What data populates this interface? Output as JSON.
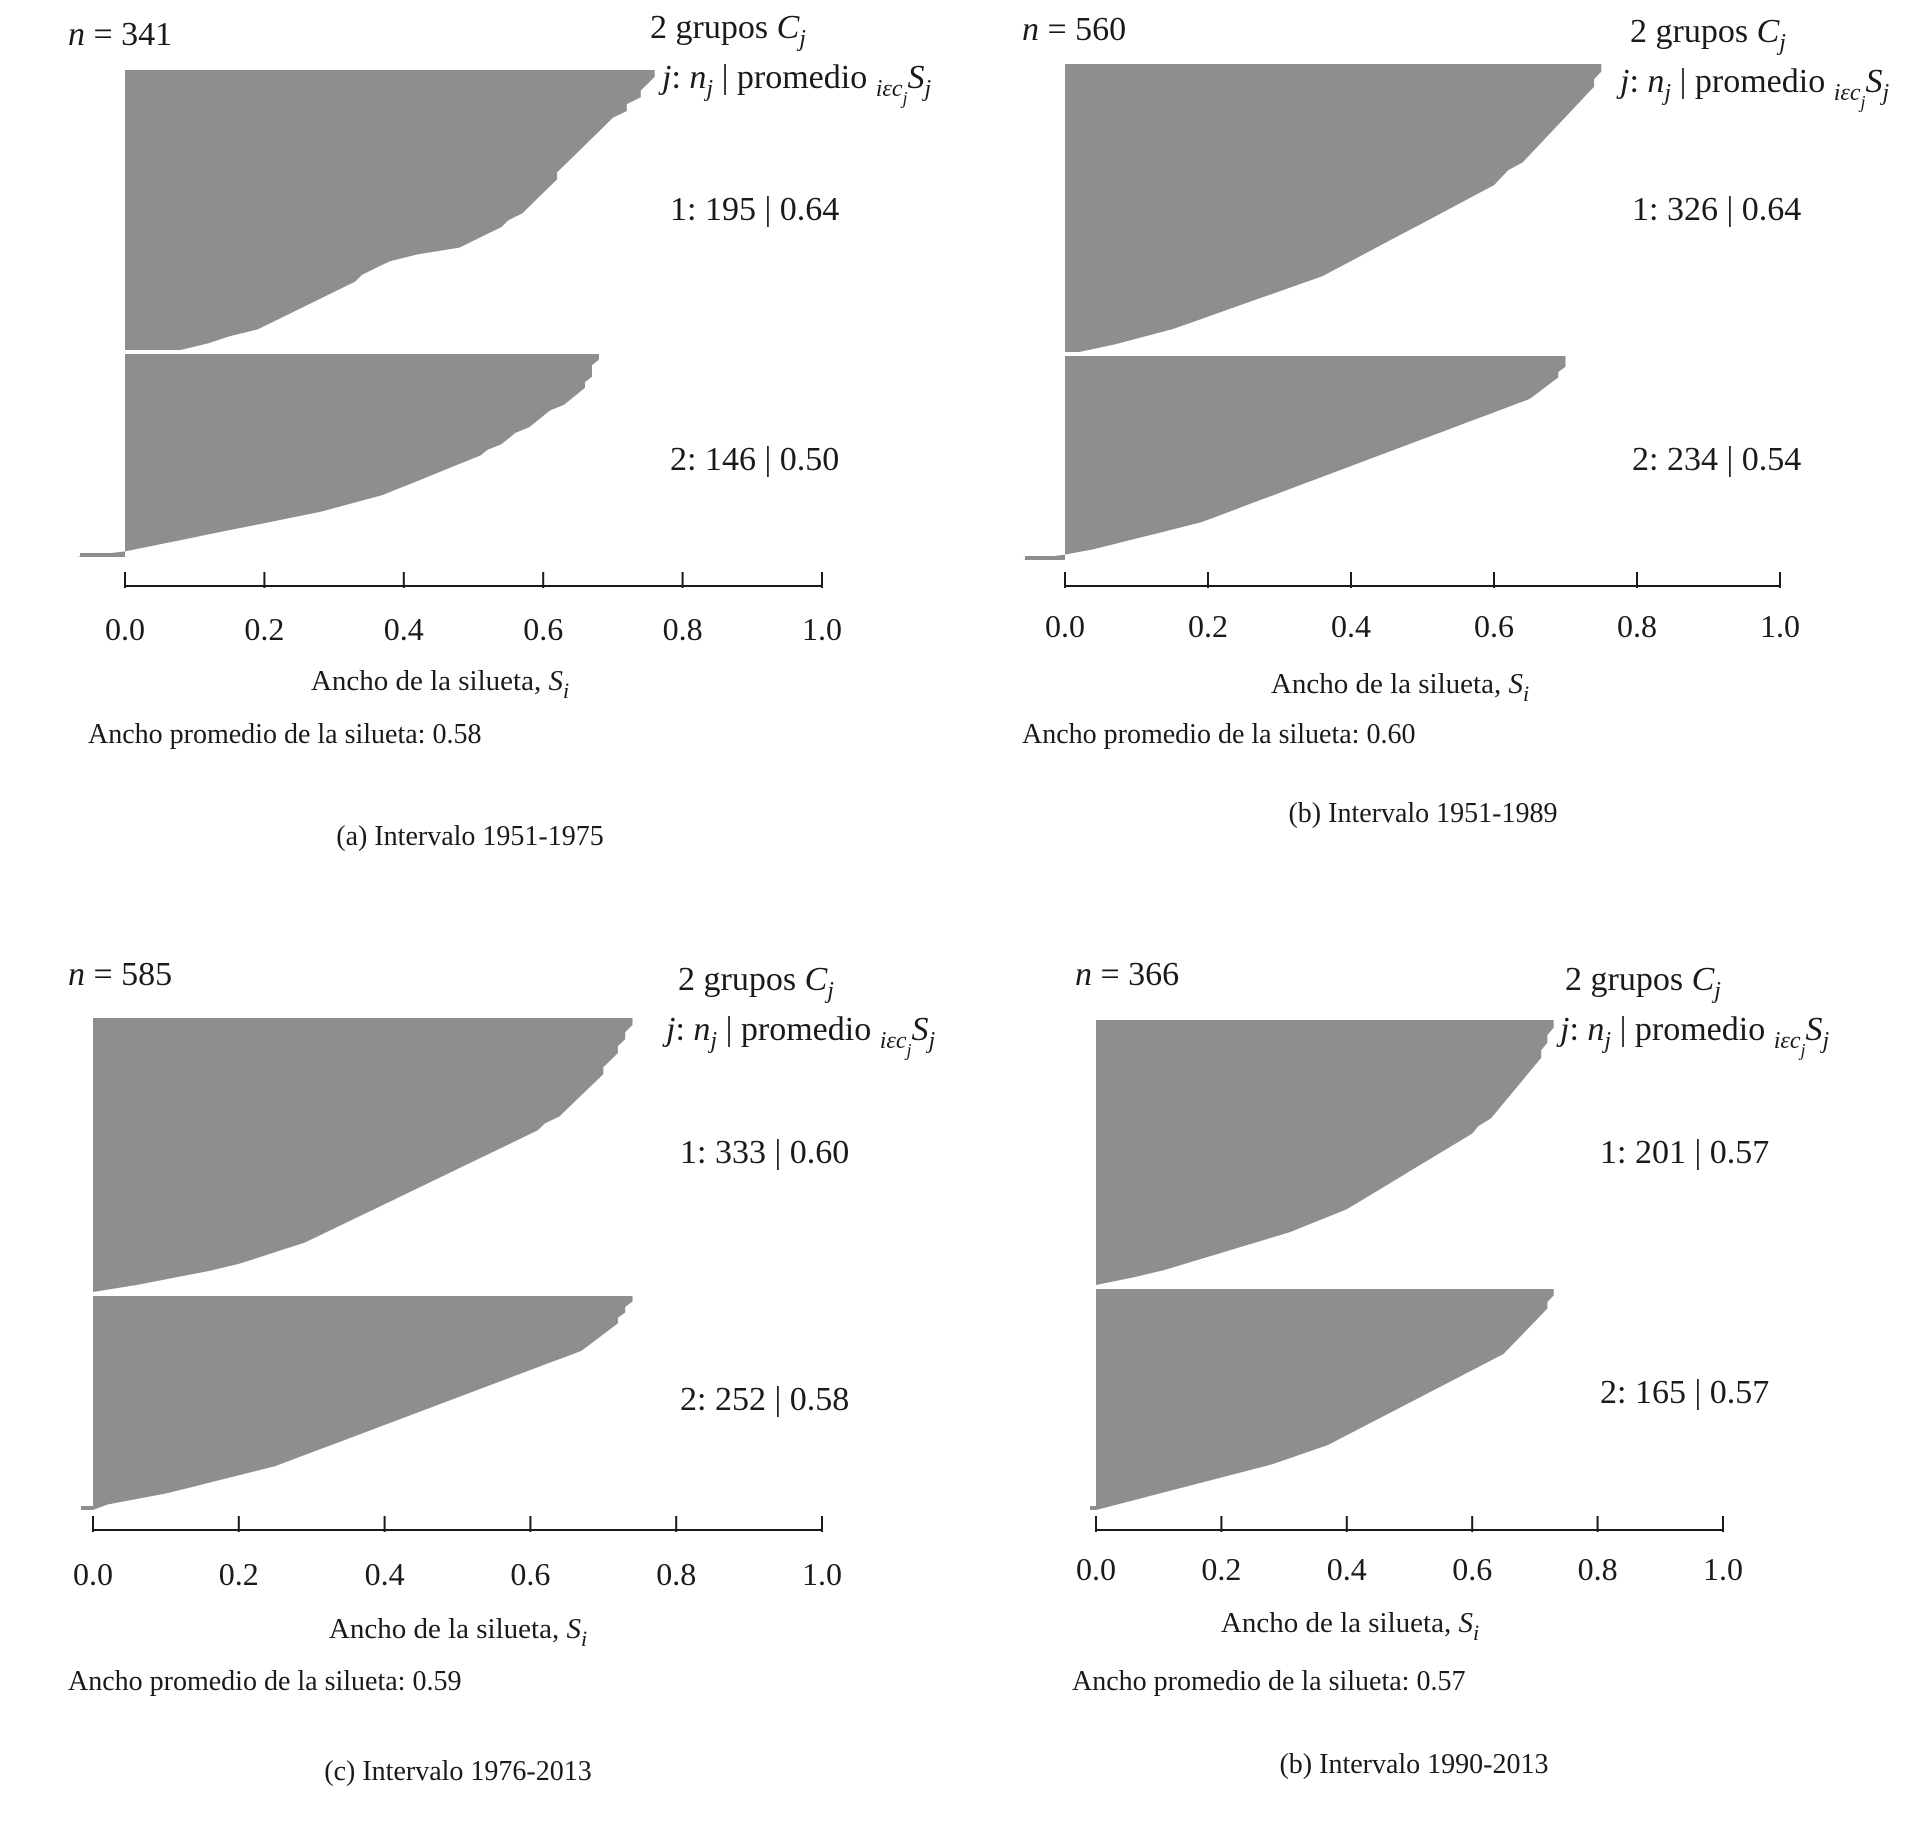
{
  "figure": {
    "bar_color": "#8e8e8e",
    "panels": [
      {
        "n_prefix": "n",
        "n_text": " = 341",
        "groups_title": "2 grupos ",
        "groups_var": "C",
        "groups_sub": "j",
        "header": {
          "j": "j",
          "colon": ": ",
          "n": "n",
          "sub": "j",
          "mid": " | promedio ",
          "iec": "iεc",
          "iec_sub": "j",
          "S": "S",
          "S_sub": "j"
        },
        "axis_title": "Ancho de la silueta, ",
        "axis_var": "S",
        "axis_sub": "i",
        "avg_text": "Ancho promedio de la silueta: 0.58",
        "caption": "(a) Intervalo 1951-1975",
        "chart_data": {
          "type": "silhouette",
          "n": 341,
          "average_width": 0.58,
          "xlim": [
            0.0,
            1.0
          ],
          "xticks": [
            "0.0",
            "0.2",
            "0.4",
            "0.6",
            "0.8",
            "1.0"
          ],
          "clusters": [
            {
              "label": "1: 195 | 0.64",
              "size": 195,
              "avg": 0.64,
              "profile": [
                0.76,
                0.76,
                0.75,
                0.74,
                0.74,
                0.72,
                0.72,
                0.7,
                0.69,
                0.68,
                0.67,
                0.66,
                0.65,
                0.64,
                0.63,
                0.62,
                0.62,
                0.61,
                0.6,
                0.59,
                0.58,
                0.57,
                0.55,
                0.54,
                0.52,
                0.5,
                0.48,
                0.42,
                0.38,
                0.36,
                0.34,
                0.33,
                0.31,
                0.29,
                0.27,
                0.25,
                0.23,
                0.21,
                0.19,
                0.15,
                0.12,
                0.08
              ]
            },
            {
              "label": "2: 146 | 0.50",
              "size": 146,
              "avg": 0.5,
              "profile": [
                0.68,
                0.68,
                0.67,
                0.67,
                0.67,
                0.66,
                0.66,
                0.65,
                0.64,
                0.63,
                0.61,
                0.6,
                0.59,
                0.58,
                0.56,
                0.55,
                0.54,
                0.52,
                0.51,
                0.49,
                0.47,
                0.45,
                0.43,
                0.41,
                0.39,
                0.37,
                0.34,
                0.31,
                0.28,
                0.24,
                0.2,
                0.16,
                0.12,
                0.08,
                0.04,
                0.0,
                -0.07
              ]
            }
          ]
        }
      },
      {
        "n_prefix": "n",
        "n_text": " = 560",
        "groups_title": "2 grupos ",
        "groups_var": "C",
        "groups_sub": "j",
        "header": {
          "j": "j",
          "colon": ": ",
          "n": "n",
          "sub": "j",
          "mid": " | promedio ",
          "iec": "iεc",
          "iec_sub": "j",
          "S": "S",
          "S_sub": "j"
        },
        "axis_title": "Ancho de la silueta, ",
        "axis_var": "S",
        "axis_sub": "i",
        "avg_text": "Ancho promedio de la silueta: 0.60",
        "caption": "(b) Intervalo 1951-1989",
        "chart_data": {
          "type": "silhouette",
          "n": 560,
          "average_width": 0.6,
          "xlim": [
            0.0,
            1.0
          ],
          "xticks": [
            "0.0",
            "0.2",
            "0.4",
            "0.6",
            "0.8",
            "1.0"
          ],
          "clusters": [
            {
              "label": "1: 326 | 0.64",
              "size": 326,
              "avg": 0.64,
              "profile": [
                0.75,
                0.75,
                0.74,
                0.74,
                0.73,
                0.72,
                0.71,
                0.7,
                0.69,
                0.68,
                0.67,
                0.66,
                0.65,
                0.64,
                0.62,
                0.61,
                0.6,
                0.58,
                0.56,
                0.54,
                0.52,
                0.5,
                0.48,
                0.46,
                0.44,
                0.42,
                0.4,
                0.38,
                0.36,
                0.33,
                0.3,
                0.27,
                0.24,
                0.21,
                0.18,
                0.15,
                0.11,
                0.07,
                0.02
              ]
            },
            {
              "label": "2: 234 | 0.54",
              "size": 234,
              "avg": 0.54,
              "profile": [
                0.7,
                0.7,
                0.7,
                0.69,
                0.69,
                0.68,
                0.67,
                0.66,
                0.65,
                0.63,
                0.61,
                0.59,
                0.57,
                0.55,
                0.53,
                0.51,
                0.49,
                0.47,
                0.45,
                0.43,
                0.41,
                0.39,
                0.37,
                0.35,
                0.33,
                0.31,
                0.29,
                0.27,
                0.25,
                0.23,
                0.21,
                0.19,
                0.16,
                0.13,
                0.1,
                0.07,
                0.04,
                0.0,
                -0.06
              ]
            }
          ]
        }
      },
      {
        "n_prefix": "n",
        "n_text": " = 585",
        "groups_title": "2 grupos ",
        "groups_var": "C",
        "groups_sub": "j",
        "header": {
          "j": "j",
          "colon": ": ",
          "n": "n",
          "sub": "j",
          "mid": " | promedio ",
          "iec": "iεc",
          "iec_sub": "j",
          "S": "S",
          "S_sub": "j"
        },
        "axis_title": "Ancho de la silueta, ",
        "axis_var": "S",
        "axis_sub": "i",
        "avg_text": "Ancho promedio de la silueta: 0.59",
        "caption": "(c) Intervalo 1976-2013",
        "chart_data": {
          "type": "silhouette",
          "n": 585,
          "average_width": 0.59,
          "xlim": [
            0.0,
            1.0
          ],
          "xticks": [
            "0.0",
            "0.2",
            "0.4",
            "0.6",
            "0.8",
            "1.0"
          ],
          "clusters": [
            {
              "label": "1: 333 | 0.60",
              "size": 333,
              "avg": 0.6,
              "profile": [
                0.74,
                0.74,
                0.73,
                0.73,
                0.72,
                0.72,
                0.71,
                0.7,
                0.7,
                0.69,
                0.68,
                0.67,
                0.66,
                0.65,
                0.64,
                0.62,
                0.61,
                0.59,
                0.57,
                0.55,
                0.53,
                0.51,
                0.49,
                0.47,
                0.45,
                0.43,
                0.41,
                0.39,
                0.37,
                0.35,
                0.33,
                0.31,
                0.29,
                0.26,
                0.23,
                0.2,
                0.16,
                0.11,
                0.06,
                0.0
              ]
            },
            {
              "label": "2: 252 | 0.58",
              "size": 252,
              "avg": 0.58,
              "profile": [
                0.74,
                0.74,
                0.73,
                0.73,
                0.72,
                0.72,
                0.71,
                0.7,
                0.69,
                0.68,
                0.67,
                0.65,
                0.63,
                0.61,
                0.59,
                0.57,
                0.55,
                0.53,
                0.51,
                0.49,
                0.47,
                0.45,
                0.43,
                0.41,
                0.39,
                0.37,
                0.35,
                0.33,
                0.31,
                0.29,
                0.27,
                0.25,
                0.22,
                0.19,
                0.16,
                0.13,
                0.1,
                0.06,
                0.02,
                0.0
              ]
            }
          ]
        }
      },
      {
        "n_prefix": "n",
        "n_text": " = 366",
        "groups_title": "2 grupos ",
        "groups_var": "C",
        "groups_sub": "j",
        "header": {
          "j": "j",
          "colon": ": ",
          "n": "n",
          "sub": "j",
          "mid": " | promedio ",
          "iec": "iεc",
          "iec_sub": "j",
          "S": "S",
          "S_sub": "j"
        },
        "axis_title": "Ancho de la silueta, ",
        "axis_var": "S",
        "axis_sub": "i",
        "avg_text": "Ancho promedio de la silueta: 0.57",
        "caption": "(b) Intervalo 1990-2013",
        "chart_data": {
          "type": "silhouette",
          "n": 366,
          "average_width": 0.57,
          "xlim": [
            0.0,
            1.0
          ],
          "xticks": [
            "0.0",
            "0.2",
            "0.4",
            "0.6",
            "0.8",
            "1.0"
          ],
          "clusters": [
            {
              "label": "1: 201 | 0.57",
              "size": 201,
              "avg": 0.57,
              "profile": [
                0.73,
                0.73,
                0.72,
                0.72,
                0.71,
                0.71,
                0.7,
                0.69,
                0.68,
                0.67,
                0.66,
                0.65,
                0.64,
                0.63,
                0.61,
                0.6,
                0.58,
                0.56,
                0.54,
                0.52,
                0.5,
                0.48,
                0.46,
                0.44,
                0.42,
                0.4,
                0.37,
                0.34,
                0.31,
                0.27,
                0.23,
                0.19,
                0.15,
                0.11,
                0.06,
                0.0
              ]
            },
            {
              "label": "2: 165 | 0.57",
              "size": 165,
              "avg": 0.57,
              "profile": [
                0.73,
                0.73,
                0.72,
                0.72,
                0.71,
                0.7,
                0.69,
                0.68,
                0.67,
                0.66,
                0.65,
                0.63,
                0.61,
                0.59,
                0.57,
                0.55,
                0.53,
                0.51,
                0.49,
                0.47,
                0.45,
                0.43,
                0.41,
                0.39,
                0.37,
                0.34,
                0.31,
                0.28,
                0.24,
                0.2,
                0.16,
                0.12,
                0.08,
                0.04,
                0.0
              ]
            }
          ]
        }
      }
    ]
  }
}
